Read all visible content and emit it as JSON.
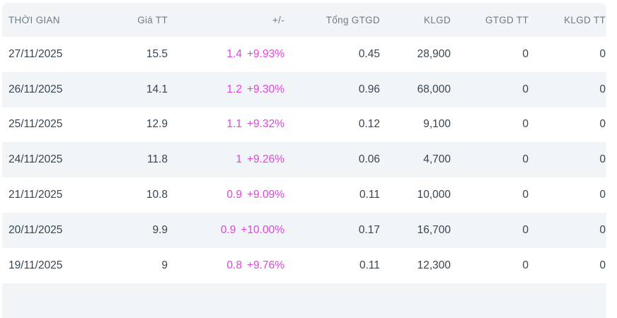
{
  "colors": {
    "accent_magenta": "#e83ee8",
    "stripe_background": "#f2f5f8",
    "header_text": "#6e7b87",
    "body_text": "#374553"
  },
  "table": {
    "columns": [
      {
        "key": "date",
        "label": "THỜI GIAN",
        "align": "left"
      },
      {
        "key": "price",
        "label": "Giá TT",
        "align": "right"
      },
      {
        "key": "change",
        "label": "+/-",
        "align": "right"
      },
      {
        "key": "total_value",
        "label": "Tổng GTGD",
        "align": "right"
      },
      {
        "key": "volume",
        "label": "KLGD",
        "align": "right"
      },
      {
        "key": "gtgd_tt",
        "label": "GTGD TT",
        "align": "right"
      },
      {
        "key": "klgd_tt",
        "label": "KLGD TT",
        "align": "right"
      }
    ],
    "rows": [
      {
        "date": "27/11/2025",
        "price": "15.5",
        "change": "1.4",
        "change_pct": "+9.93%",
        "total_value": "0.45",
        "volume": "28,900",
        "gtgd_tt": "0",
        "klgd_tt": "0"
      },
      {
        "date": "26/11/2025",
        "price": "14.1",
        "change": "1.2",
        "change_pct": "+9.30%",
        "total_value": "0.96",
        "volume": "68,000",
        "gtgd_tt": "0",
        "klgd_tt": "0"
      },
      {
        "date": "25/11/2025",
        "price": "12.9",
        "change": "1.1",
        "change_pct": "+9.32%",
        "total_value": "0.12",
        "volume": "9,100",
        "gtgd_tt": "0",
        "klgd_tt": "0"
      },
      {
        "date": "24/11/2025",
        "price": "11.8",
        "change": "1",
        "change_pct": "+9.26%",
        "total_value": "0.06",
        "volume": "4,700",
        "gtgd_tt": "0",
        "klgd_tt": "0"
      },
      {
        "date": "21/11/2025",
        "price": "10.8",
        "change": "0.9",
        "change_pct": "+9.09%",
        "total_value": "0.11",
        "volume": "10,000",
        "gtgd_tt": "0",
        "klgd_tt": "0"
      },
      {
        "date": "20/11/2025",
        "price": "9.9",
        "change": "0.9",
        "change_pct": "+10.00%",
        "total_value": "0.17",
        "volume": "16,700",
        "gtgd_tt": "0",
        "klgd_tt": "0"
      },
      {
        "date": "19/11/2025",
        "price": "9",
        "change": "0.8",
        "change_pct": "+9.76%",
        "total_value": "0.11",
        "volume": "12,300",
        "gtgd_tt": "0",
        "klgd_tt": "0"
      }
    ]
  }
}
